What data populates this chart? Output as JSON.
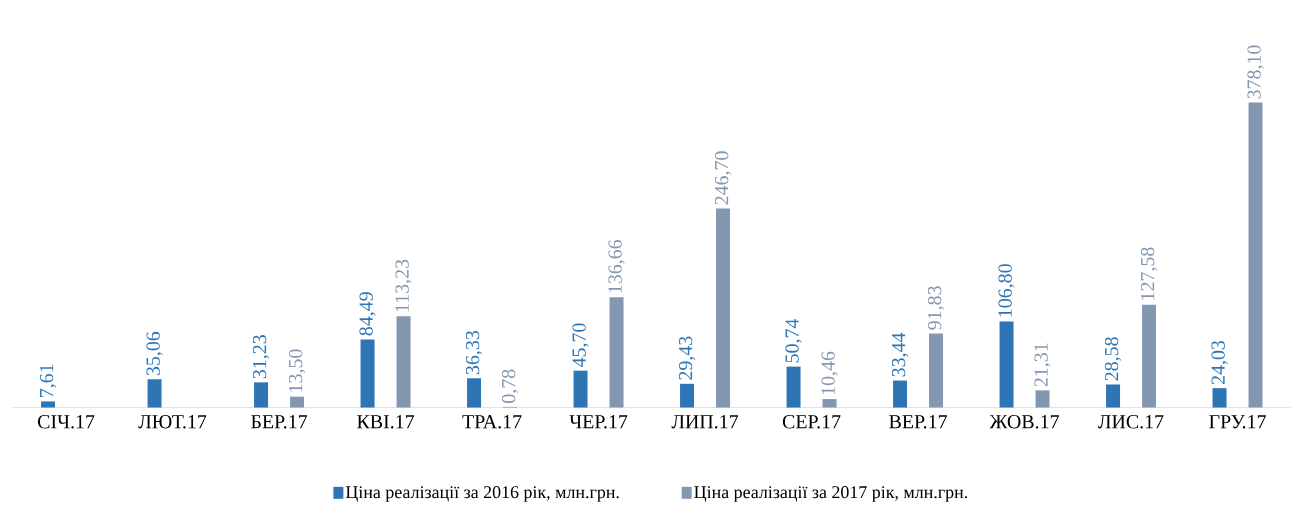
{
  "chart_data": {
    "type": "bar",
    "categories": [
      "СІЧ.17",
      "ЛЮТ.17",
      "БЕР.17",
      "КВІ.17",
      "ТРА.17",
      "ЧЕР.17",
      "ЛИП.17",
      "СЕР.17",
      "ВЕР.17",
      "ЖОВ.17",
      "ЛИС.17",
      "ГРУ.17"
    ],
    "series": [
      {
        "name": "Ціна реалізації за 2016 рік, млн.грн.",
        "color": "#2e75b6",
        "values": [
          7.61,
          35.06,
          31.23,
          84.49,
          36.33,
          45.7,
          29.43,
          50.74,
          33.44,
          106.8,
          28.58,
          24.03
        ],
        "value_labels": [
          "7,61",
          "35,06",
          "31,23",
          "84,49",
          "36,33",
          "45,70",
          "29,43",
          "50,74",
          "33,44",
          "106,80",
          "28,58",
          "24,03"
        ]
      },
      {
        "name": "Ціна реалізації за 2017 рік, млн.грн.",
        "color": "#8497b0",
        "values": [
          null,
          null,
          13.5,
          113.23,
          0.78,
          136.66,
          246.7,
          10.46,
          91.83,
          21.31,
          127.58,
          378.1
        ],
        "value_labels": [
          null,
          null,
          "13,50",
          "113,23",
          "0,78",
          "136,66",
          "246,70",
          "10,46",
          "91,83",
          "21,31",
          "127,58",
          "378,10"
        ]
      }
    ],
    "legend": "bottom"
  }
}
